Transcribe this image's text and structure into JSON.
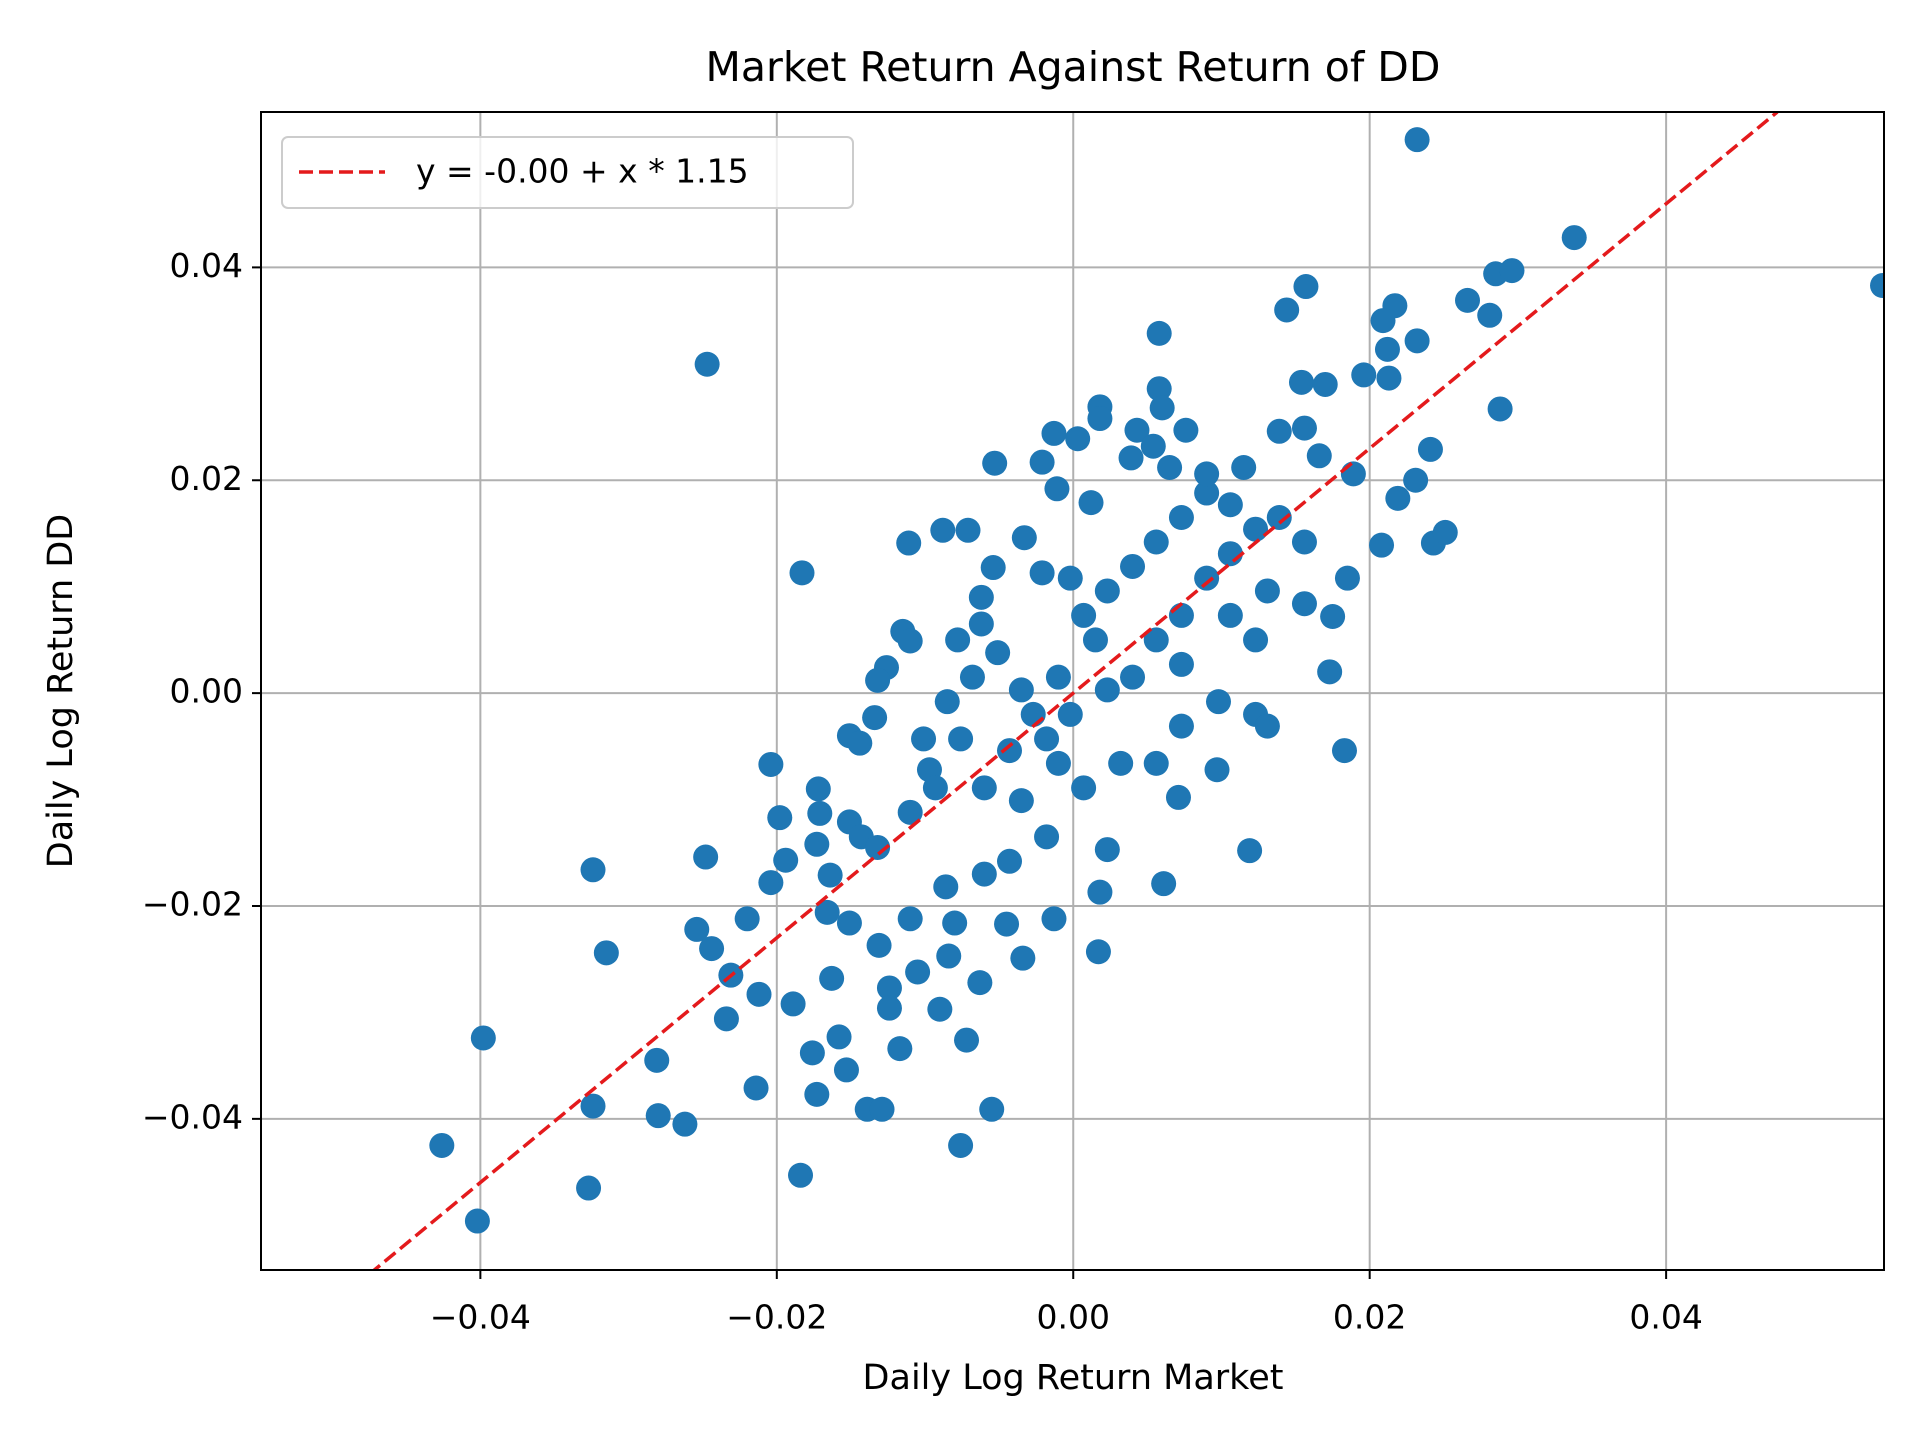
{
  "chart_data": {
    "type": "scatter",
    "title": "Market Return Against Return of DD",
    "x_label": "Daily Log Return Market",
    "y_label": "Daily Log Return DD",
    "xlim": [
      -0.0548,
      0.0547
    ],
    "ylim": [
      -0.0542,
      0.0546
    ],
    "xticks": [
      {
        "value": -0.04,
        "label": "−0.04"
      },
      {
        "value": -0.02,
        "label": "−0.02"
      },
      {
        "value": 0,
        "label": "0.00"
      },
      {
        "value": 0.02,
        "label": "0.02"
      },
      {
        "value": 0.04,
        "label": "0.04"
      }
    ],
    "yticks": [
      {
        "value": -0.04,
        "label": "−0.04"
      },
      {
        "value": -0.02,
        "label": "−0.02"
      },
      {
        "value": 0,
        "label": "0.00"
      },
      {
        "value": 0.02,
        "label": "0.02"
      },
      {
        "value": 0.04,
        "label": "0.04"
      }
    ],
    "grid": true,
    "legend_position": "upper-left",
    "points": {
      "color": "#1f77b4",
      "x": [
        0.0232,
        0.0546,
        0.0338,
        -0.0247,
        -0.0183,
        -0.0402,
        -0.0426,
        -0.0398,
        -0.0327,
        -0.0324,
        -0.0324,
        -0.0315,
        -0.0281,
        -0.028,
        -0.0262,
        -0.0248,
        -0.0254,
        -0.0244,
        -0.0234,
        -0.0231,
        -0.022,
        -0.0214,
        -0.0212,
        -0.0204,
        -0.0198,
        -0.0194,
        -0.0204,
        -0.0189,
        -0.0184,
        -0.0176,
        -0.0173,
        -0.0163,
        -0.0158,
        -0.0153,
        -0.0139,
        -0.0129,
        -0.0124,
        -0.0124,
        -0.0117,
        -0.0111,
        -0.0088,
        -0.0071,
        -0.0076,
        -0.0055,
        -0.0072,
        -0.009,
        -0.0063,
        -0.0045,
        -0.0034,
        -0.0013,
        0.0017,
        0.0018,
        0.0061,
        0.0071,
        0.0097,
        0.0119,
        0.0183,
        0.0173,
        0.0175,
        0.0185,
        0.0208,
        0.0243,
        0.0251,
        0.0288,
        0.0196,
        0.0213,
        0.0232,
        0.0212,
        0.0217,
        0.0209,
        0.0266,
        0.0281,
        0.0285,
        0.0296,
        0.0157,
        0.0144,
        0.0154,
        0.017,
        0.0058,
        0.0058,
        0.006,
        0.0018,
        0.0018,
        0.0043,
        0.0054,
        0.0076,
        0.0039,
        0.0003,
        -0.0013,
        -0.0021,
        -0.0053,
        -0.0011,
        0.0012,
        -0.0033,
        -0.0021,
        -0.0054,
        -0.0062,
        -0.0062,
        -0.0078,
        -0.0115,
        -0.011,
        -0.0126,
        -0.0132,
        -0.0134,
        -0.0151,
        -0.0144,
        -0.0172,
        -0.0171,
        -0.0173,
        -0.0164,
        -0.0166,
        -0.0151,
        -0.0143,
        -0.0132,
        -0.0151,
        -0.0131,
        -0.011,
        -0.0105,
        -0.0084,
        -0.008,
        -0.0086,
        -0.011,
        -0.0097,
        -0.0076,
        -0.006,
        -0.0043,
        -0.0035,
        -0.0018,
        -0.001,
        0.0007,
        0.0023,
        0.0032,
        -0.0043,
        -0.006,
        -0.0027,
        -0.001,
        0.0015,
        0.0023,
        0.004,
        0.0056,
        0.0073,
        0.009,
        0.0106,
        0.0123,
        0.0139,
        0.0156,
        0.0139,
        0.0156,
        0.0166,
        0.0189,
        0.0231,
        0.0241,
        0.0219,
        0.0115,
        0.009,
        0.0065,
        0.0156,
        0.0131,
        0.0123,
        0.0123,
        0.0131,
        0.0098,
        0.0073,
        0.0056,
        0.0073,
        0.0056,
        0.004,
        0.0023,
        -0.0002,
        -0.0018,
        -0.0035,
        -0.0051,
        -0.0068,
        -0.0085,
        -0.0101,
        -0.0093,
        0.0007,
        -0.0002,
        0.009,
        0.0106,
        0.0106,
        0.0073
      ],
      "values": [
        0.052,
        0.0383,
        0.0428,
        0.0309,
        0.0113,
        -0.0496,
        -0.0425,
        -0.0324,
        -0.0465,
        -0.0388,
        -0.0166,
        -0.0244,
        -0.0345,
        -0.0397,
        -0.0405,
        -0.0154,
        -0.0222,
        -0.024,
        -0.0306,
        -0.0265,
        -0.0212,
        -0.0371,
        -0.0283,
        -0.0067,
        -0.0117,
        -0.0157,
        -0.0178,
        -0.0292,
        -0.0453,
        -0.0338,
        -0.0377,
        -0.0268,
        -0.0323,
        -0.0354,
        -0.0391,
        -0.0391,
        -0.0277,
        -0.0296,
        -0.0334,
        0.0141,
        0.0153,
        0.0153,
        -0.0425,
        -0.0391,
        -0.0326,
        -0.0297,
        -0.0272,
        -0.0217,
        -0.0249,
        -0.0212,
        -0.0243,
        -0.0187,
        -0.0179,
        -0.0098,
        -0.0072,
        -0.0148,
        -0.0054,
        0.002,
        0.0072,
        0.0108,
        0.0139,
        0.0141,
        0.0151,
        0.0267,
        0.0299,
        0.0296,
        0.0331,
        0.0323,
        0.0364,
        0.035,
        0.0369,
        0.0355,
        0.0394,
        0.0397,
        0.0382,
        0.036,
        0.0292,
        0.029,
        0.0338,
        0.0286,
        0.0268,
        0.0269,
        0.0258,
        0.0247,
        0.0232,
        0.0247,
        0.0221,
        0.0239,
        0.0244,
        0.0217,
        0.0216,
        0.0192,
        0.0179,
        0.0146,
        0.0113,
        0.0118,
        0.009,
        0.0065,
        0.005,
        0.0058,
        0.0049,
        0.0024,
        0.0012,
        -0.0023,
        -0.004,
        -0.0047,
        -0.009,
        -0.0113,
        -0.0142,
        -0.0171,
        -0.0206,
        -0.0121,
        -0.0135,
        -0.0145,
        -0.0216,
        -0.0237,
        -0.0212,
        -0.0262,
        -0.0247,
        -0.0216,
        -0.0182,
        -0.0112,
        -0.0072,
        -0.0043,
        -0.0089,
        -0.0054,
        -0.0101,
        -0.0135,
        -0.0066,
        -0.0089,
        -0.0147,
        -0.0066,
        -0.0158,
        -0.017,
        -0.002,
        0.0015,
        0.005,
        0.0096,
        0.0119,
        0.0142,
        0.0165,
        0.0188,
        0.0177,
        0.0154,
        0.0165,
        0.0142,
        0.0246,
        0.0249,
        0.0223,
        0.0206,
        0.02,
        0.0229,
        0.0183,
        0.0212,
        0.0206,
        0.0212,
        0.0084,
        0.0096,
        0.005,
        -0.002,
        -0.0031,
        -0.0008,
        -0.0031,
        -0.0066,
        0.0027,
        0.005,
        0.0015,
        0.0003,
        -0.002,
        -0.0043,
        0.0003,
        0.0038,
        0.0015,
        -0.0008,
        -0.0043,
        -0.0089,
        0.0073,
        0.0108,
        0.0108,
        0.0073,
        0.0131,
        0.0073
      ]
    },
    "fit_line": {
      "name": "y = -0.00 + x * 1.15",
      "color": "#e41a1c",
      "dashed": true,
      "x": [
        -0.0475,
        0.0475
      ],
      "values": [
        -0.0546,
        0.0546
      ]
    }
  }
}
